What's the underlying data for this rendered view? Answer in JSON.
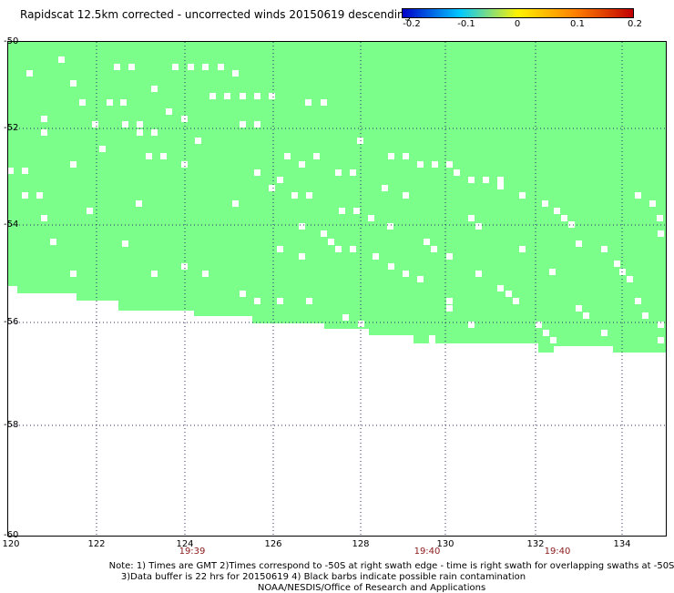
{
  "title": "Rapidscat 12.5km corrected - uncorrected winds 20150619 descending",
  "colorbar": {
    "labels": [
      "-0.2",
      "-0.1",
      "0",
      "0.1",
      "0.2"
    ],
    "colors": [
      "#0000c8",
      "#00c8ff",
      "#fff200",
      "#ff8000",
      "#c00000"
    ]
  },
  "map": {
    "swath_color": "#7cff8a",
    "lon_labels": [
      "120",
      "122",
      "124",
      "126",
      "128",
      "130",
      "132",
      "134"
    ],
    "lat_labels": [
      "-50",
      "-52",
      "-54",
      "-56",
      "-58",
      "-60"
    ],
    "times": [
      {
        "label": "19:39"
      },
      {
        "label": "19:40"
      },
      {
        "label": "19:40"
      }
    ]
  },
  "notes": [
    "Note: 1) Times are GMT 2)Times correspond to -50S at right swath edge - time is right swath for overlapping swaths at -50S",
    "3)Data buffer is 22 hrs for 20150619 4) Black barbs indicate possible rain contamination",
    "NOAA/NESDIS/Office of Research and Applications"
  ]
}
